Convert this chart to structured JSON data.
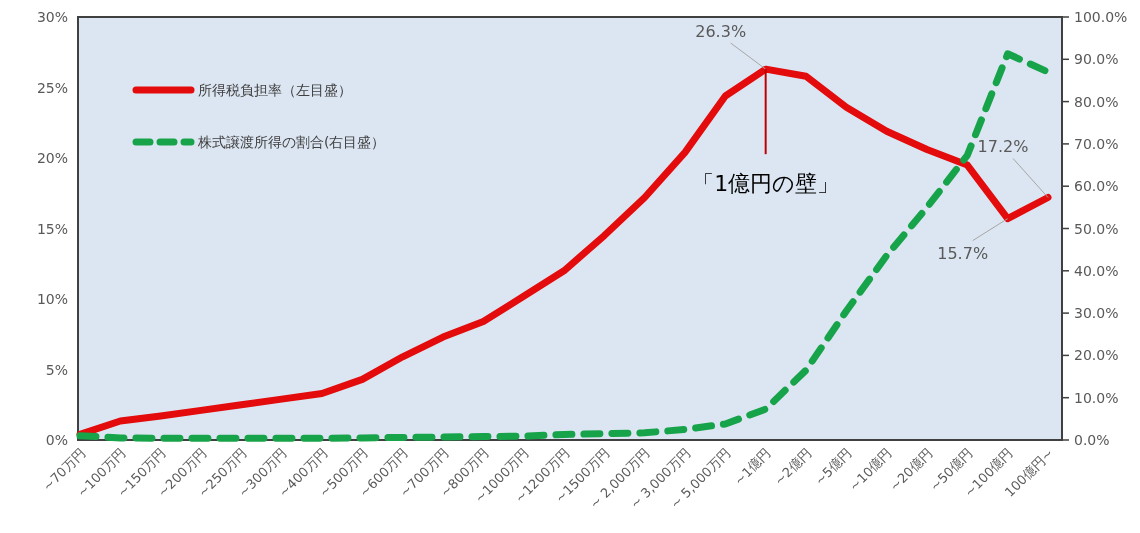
{
  "chart_data": {
    "type": "line",
    "categories": [
      "~70万円",
      "~100万円",
      "~150万円",
      "~200万円",
      "~250万円",
      "~300万円",
      "~400万円",
      "~500万円",
      "~600万円",
      "~700万円",
      "~800万円",
      "~1000万円",
      "~1200万円",
      "~1500万円",
      "~ 2,000万円",
      "~ 3,000万円",
      "~ 5,000万円",
      "~1億円",
      "~2億円",
      "~5億円",
      "~10億円",
      "~20億円",
      "~50億円",
      "~100億円",
      "100億円~"
    ],
    "series": [
      {
        "name": "所得税負担率（左目盛）",
        "color": "#e30b0b",
        "axis": "y",
        "line_style": "solid",
        "values": [
          0.4,
          1.35,
          1.7,
          2.1,
          2.5,
          2.9,
          3.3,
          4.3,
          5.9,
          7.3,
          8.4,
          10.2,
          12.0,
          14.5,
          17.2,
          20.4,
          24.4,
          26.3,
          25.8,
          23.6,
          21.9,
          20.6,
          19.5,
          15.7,
          17.2
        ],
        "value_labels": [
          null,
          null,
          null,
          null,
          null,
          null,
          null,
          null,
          null,
          null,
          null,
          null,
          null,
          null,
          null,
          null,
          null,
          "26.3%",
          null,
          null,
          null,
          null,
          null,
          "15.7%",
          "17.2%"
        ]
      },
      {
        "name": "株式譲渡所得の割合(右目盛）",
        "color": "#17a34a",
        "axis": "y2",
        "line_style": "dashed",
        "values": [
          1.0,
          0.5,
          0.4,
          0.4,
          0.4,
          0.4,
          0.4,
          0.5,
          0.6,
          0.7,
          0.8,
          0.9,
          1.3,
          1.5,
          1.7,
          2.5,
          3.8,
          7.3,
          16.5,
          30.5,
          43.6,
          55.0,
          67.3,
          91.3,
          87.0
        ]
      }
    ],
    "ylim": [
      0,
      30
    ],
    "yticks": [
      {
        "value": 0,
        "label": "0%"
      },
      {
        "value": 5,
        "label": "5%"
      },
      {
        "value": 10,
        "label": "10%"
      },
      {
        "value": 15,
        "label": "15%"
      },
      {
        "value": 20,
        "label": "20%"
      },
      {
        "value": 25,
        "label": "25%"
      },
      {
        "value": 30,
        "label": "30%"
      }
    ],
    "y2lim": [
      0,
      100
    ],
    "y2ticks": [
      {
        "value": 0,
        "label": "0.0%"
      },
      {
        "value": 10,
        "label": "10.0%"
      },
      {
        "value": 20,
        "label": "20.0%"
      },
      {
        "value": 30,
        "label": "30.0%"
      },
      {
        "value": 40,
        "label": "40.0%"
      },
      {
        "value": 50,
        "label": "50.0%"
      },
      {
        "value": 60,
        "label": "60.0%"
      },
      {
        "value": 70,
        "label": "70.0%"
      },
      {
        "value": 80,
        "label": "80.0%"
      },
      {
        "value": 90,
        "label": "90.0%"
      },
      {
        "value": 100,
        "label": "100.0%"
      }
    ],
    "legend": "top left",
    "annotations": [
      {
        "text": "「1億円の壁」",
        "x": "~1億円",
        "y": 26.3
      }
    ]
  }
}
